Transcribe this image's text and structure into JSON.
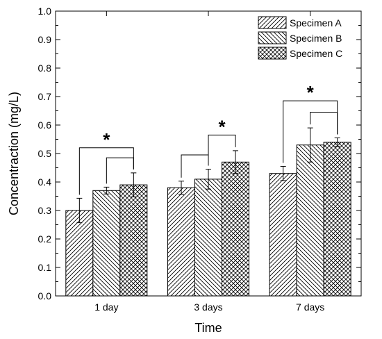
{
  "chart_data": {
    "type": "bar",
    "xlabel": "Time",
    "ylabel": "Concentraction (mg/L)",
    "ylim": [
      0,
      1.0
    ],
    "yticks": [
      "0.0",
      "0.1",
      "0.2",
      "0.3",
      "0.4",
      "0.5",
      "0.6",
      "0.7",
      "0.8",
      "0.9",
      "1.0"
    ],
    "categories": [
      "1 day",
      "3 days",
      "7 days"
    ],
    "series": [
      {
        "name": "Specimen A",
        "pattern": "diag-right",
        "values": [
          0.3,
          0.38,
          0.43
        ],
        "errors": [
          0.043,
          0.023,
          0.025
        ]
      },
      {
        "name": "Specimen B",
        "pattern": "diag-left",
        "values": [
          0.37,
          0.41,
          0.53
        ],
        "errors": [
          0.012,
          0.035,
          0.06
        ]
      },
      {
        "name": "Specimen C",
        "pattern": "crosshatch",
        "values": [
          0.39,
          0.47,
          0.54
        ],
        "errors": [
          0.042,
          0.04,
          0.015
        ]
      }
    ],
    "legend_position": "top-right",
    "grid": false,
    "significance": [
      {
        "category": 0,
        "from_series": 0,
        "to_series": 2,
        "label": "*",
        "level": 0.52
      },
      {
        "category": 0,
        "from_series": 1,
        "to_series": 2,
        "label": "",
        "level": 0.485
      },
      {
        "category": 1,
        "from_series": 0,
        "to_series": 1,
        "label": "",
        "level": 0.495
      },
      {
        "category": 1,
        "from_series": 1,
        "to_series": 2,
        "label": "*",
        "level": 0.565
      },
      {
        "category": 2,
        "from_series": 0,
        "to_series": 2,
        "label": "*",
        "level": 0.685
      },
      {
        "category": 2,
        "from_series": 1,
        "to_series": 2,
        "label": "",
        "level": 0.645
      }
    ],
    "colors": {
      "fill": "#ffffff",
      "stroke": "#000000"
    }
  }
}
